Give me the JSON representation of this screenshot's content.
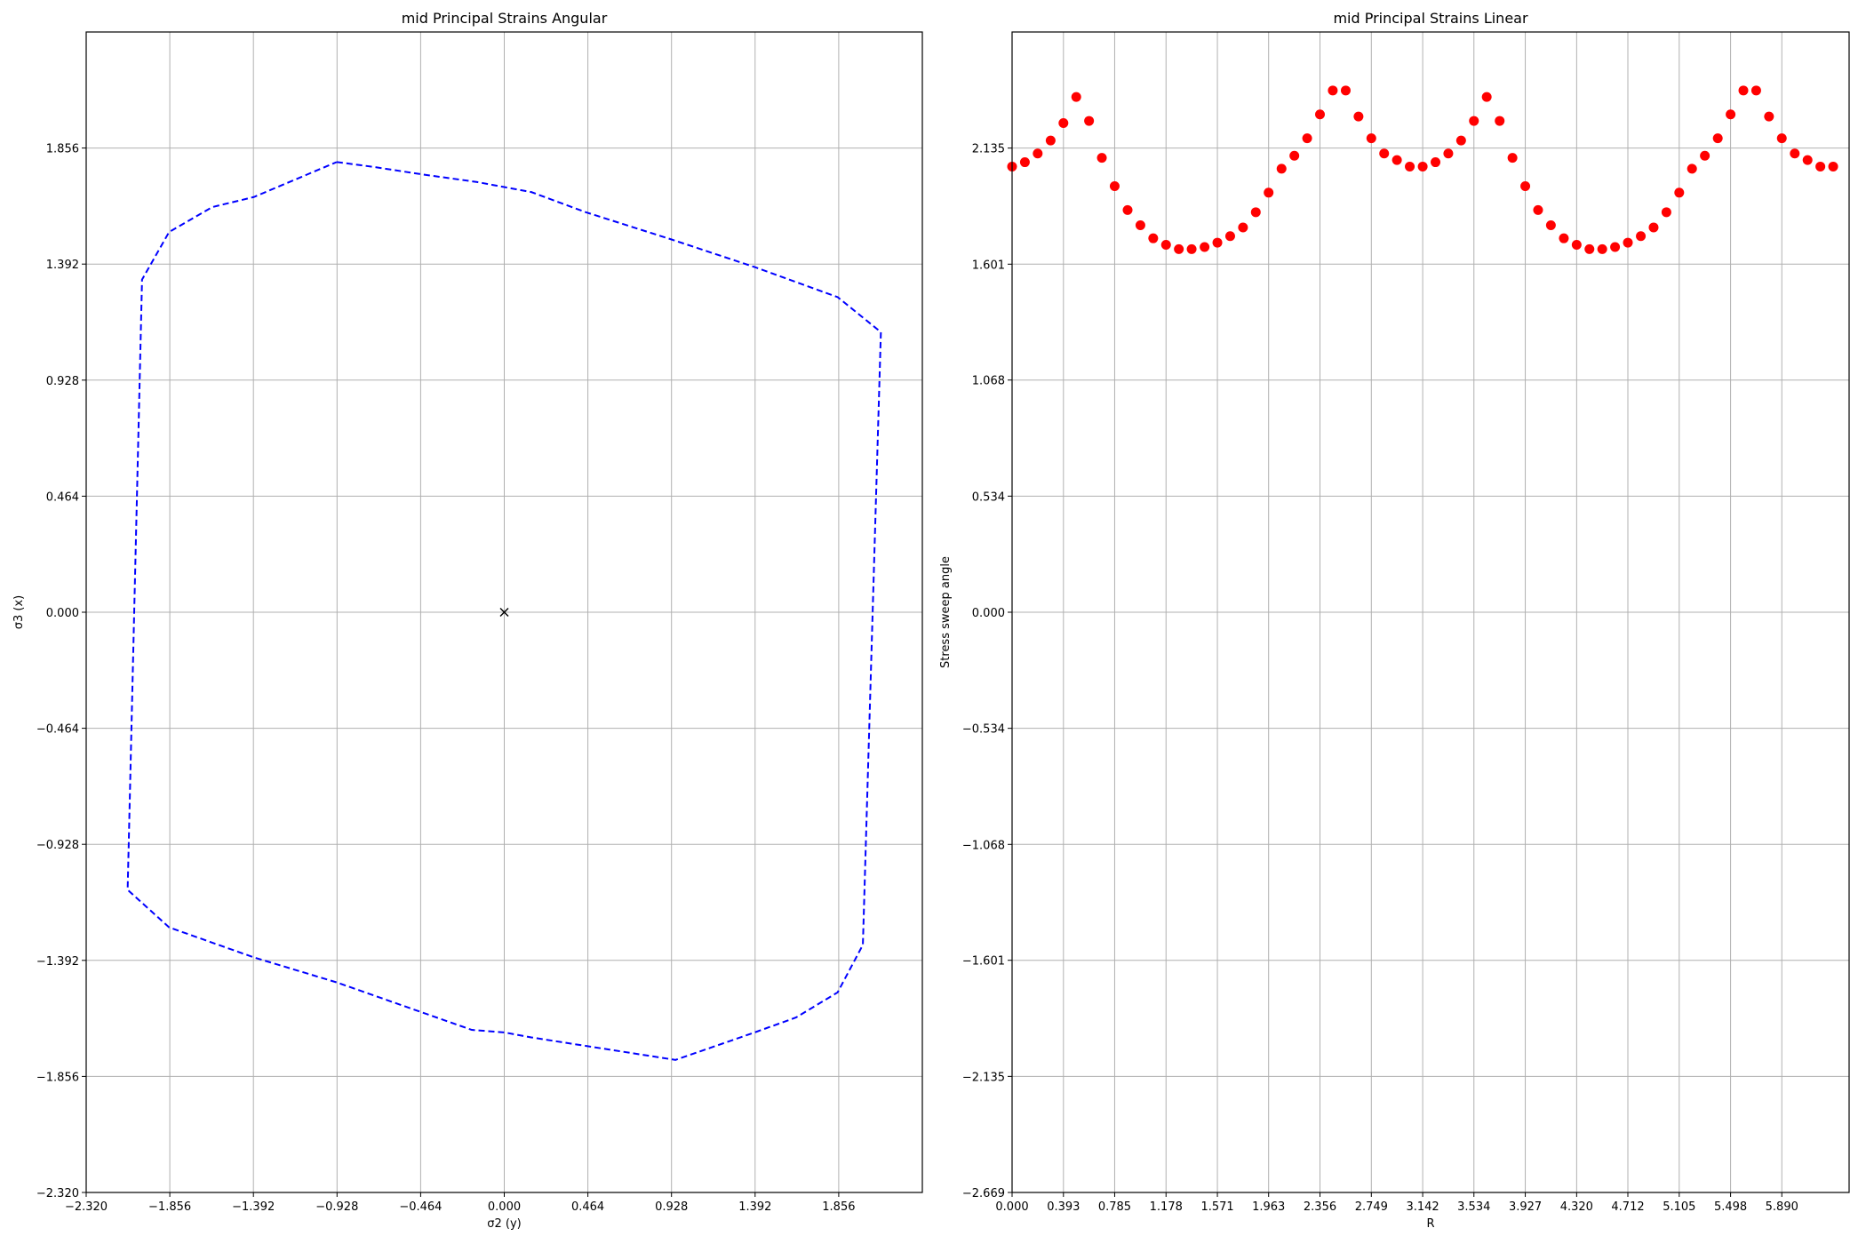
{
  "chart_data": [
    {
      "type": "line",
      "title": "mid Principal Strains Angular",
      "xlabel": "σ2 (y)",
      "ylabel": "σ3 (x)",
      "xlim": [
        -2.32,
        2.32
      ],
      "ylim": [
        -2.32,
        2.32
      ],
      "xticks": [
        "-2.320",
        "-1.856",
        "-1.392",
        "-0.928",
        "-0.464",
        "0.000",
        "0.464",
        "0.928",
        "1.392",
        "1.856"
      ],
      "yticks": [
        "-2.320",
        "-1.856",
        "-1.392",
        "-0.928",
        "-0.464",
        "0.000",
        "0.464",
        "0.928",
        "1.392",
        "1.856"
      ],
      "grid": true,
      "series": [
        {
          "style": "dashed",
          "color": "#0000ff",
          "x": [
            -0.93,
            -0.72,
            -0.45,
            -0.15,
            0.0,
            0.15,
            0.45,
            0.93,
            1.39,
            1.85,
            2.09,
            1.99,
            1.85,
            1.62,
            1.39,
            0.95,
            0.15,
            0.0,
            -0.18,
            -0.93,
            -1.39,
            -1.86,
            -2.09,
            -2.01,
            -1.86,
            -1.62,
            -1.39,
            -0.93
          ],
          "y": [
            1.8,
            1.78,
            1.75,
            1.72,
            1.7,
            1.68,
            1.6,
            1.49,
            1.38,
            1.26,
            1.12,
            -1.33,
            -1.52,
            -1.62,
            -1.68,
            -1.79,
            -1.7,
            -1.68,
            -1.67,
            -1.48,
            -1.38,
            -1.26,
            -1.11,
            1.33,
            1.52,
            1.62,
            1.66,
            1.8
          ]
        }
      ],
      "marker": {
        "symbol": "x",
        "x": 0.0,
        "y": 0.0,
        "color": "#000000"
      }
    },
    {
      "type": "scatter",
      "title": "mid Principal Strains Linear",
      "xlabel": "R",
      "ylabel": "Stress sweep angle",
      "xlim": [
        0.0,
        6.405
      ],
      "ylim": [
        -2.669,
        2.669
      ],
      "xticks": [
        "0.000",
        "0.393",
        "0.785",
        "1.178",
        "1.571",
        "1.963",
        "2.356",
        "2.749",
        "3.142",
        "3.534",
        "3.927",
        "4.320",
        "4.712",
        "5.105",
        "5.498",
        "5.890"
      ],
      "yticks": [
        "-2.669",
        "-2.135",
        "-1.601",
        "-1.068",
        "-0.534",
        "0.000",
        "0.534",
        "1.068",
        "1.601",
        "2.135"
      ],
      "grid": true,
      "series": [
        {
          "color": "#ff0000",
          "x": [
            0.0,
            0.098,
            0.196,
            0.295,
            0.393,
            0.491,
            0.589,
            0.687,
            0.785,
            0.884,
            0.982,
            1.08,
            1.178,
            1.276,
            1.374,
            1.473,
            1.571,
            1.669,
            1.767,
            1.865,
            1.963,
            2.062,
            2.16,
            2.258,
            2.356,
            2.454,
            2.553,
            2.651,
            2.749,
            2.847,
            2.945,
            3.043,
            3.142,
            3.24,
            3.338,
            3.436,
            3.534,
            3.632,
            3.731,
            3.829,
            3.927,
            4.025,
            4.123,
            4.222,
            4.32,
            4.418,
            4.516,
            4.614,
            4.712,
            4.811,
            4.909,
            5.007,
            5.105,
            5.203,
            5.301,
            5.4,
            5.498,
            5.596,
            5.694,
            5.792,
            5.89,
            5.989,
            6.087,
            6.185,
            6.283
          ],
          "y": [
            2.05,
            2.07,
            2.11,
            2.17,
            2.25,
            2.37,
            2.26,
            2.09,
            1.96,
            1.85,
            1.78,
            1.72,
            1.69,
            1.67,
            1.67,
            1.68,
            1.7,
            1.73,
            1.77,
            1.84,
            1.93,
            2.04,
            2.1,
            2.18,
            2.29,
            2.4,
            2.4,
            2.28,
            2.18,
            2.11,
            2.08,
            2.05,
            2.05,
            2.07,
            2.11,
            2.17,
            2.26,
            2.37,
            2.26,
            2.09,
            1.96,
            1.85,
            1.78,
            1.72,
            1.69,
            1.67,
            1.67,
            1.68,
            1.7,
            1.73,
            1.77,
            1.84,
            1.93,
            2.04,
            2.1,
            2.18,
            2.29,
            2.4,
            2.4,
            2.28,
            2.18,
            2.11,
            2.08,
            2.05,
            2.05
          ]
        }
      ]
    }
  ]
}
